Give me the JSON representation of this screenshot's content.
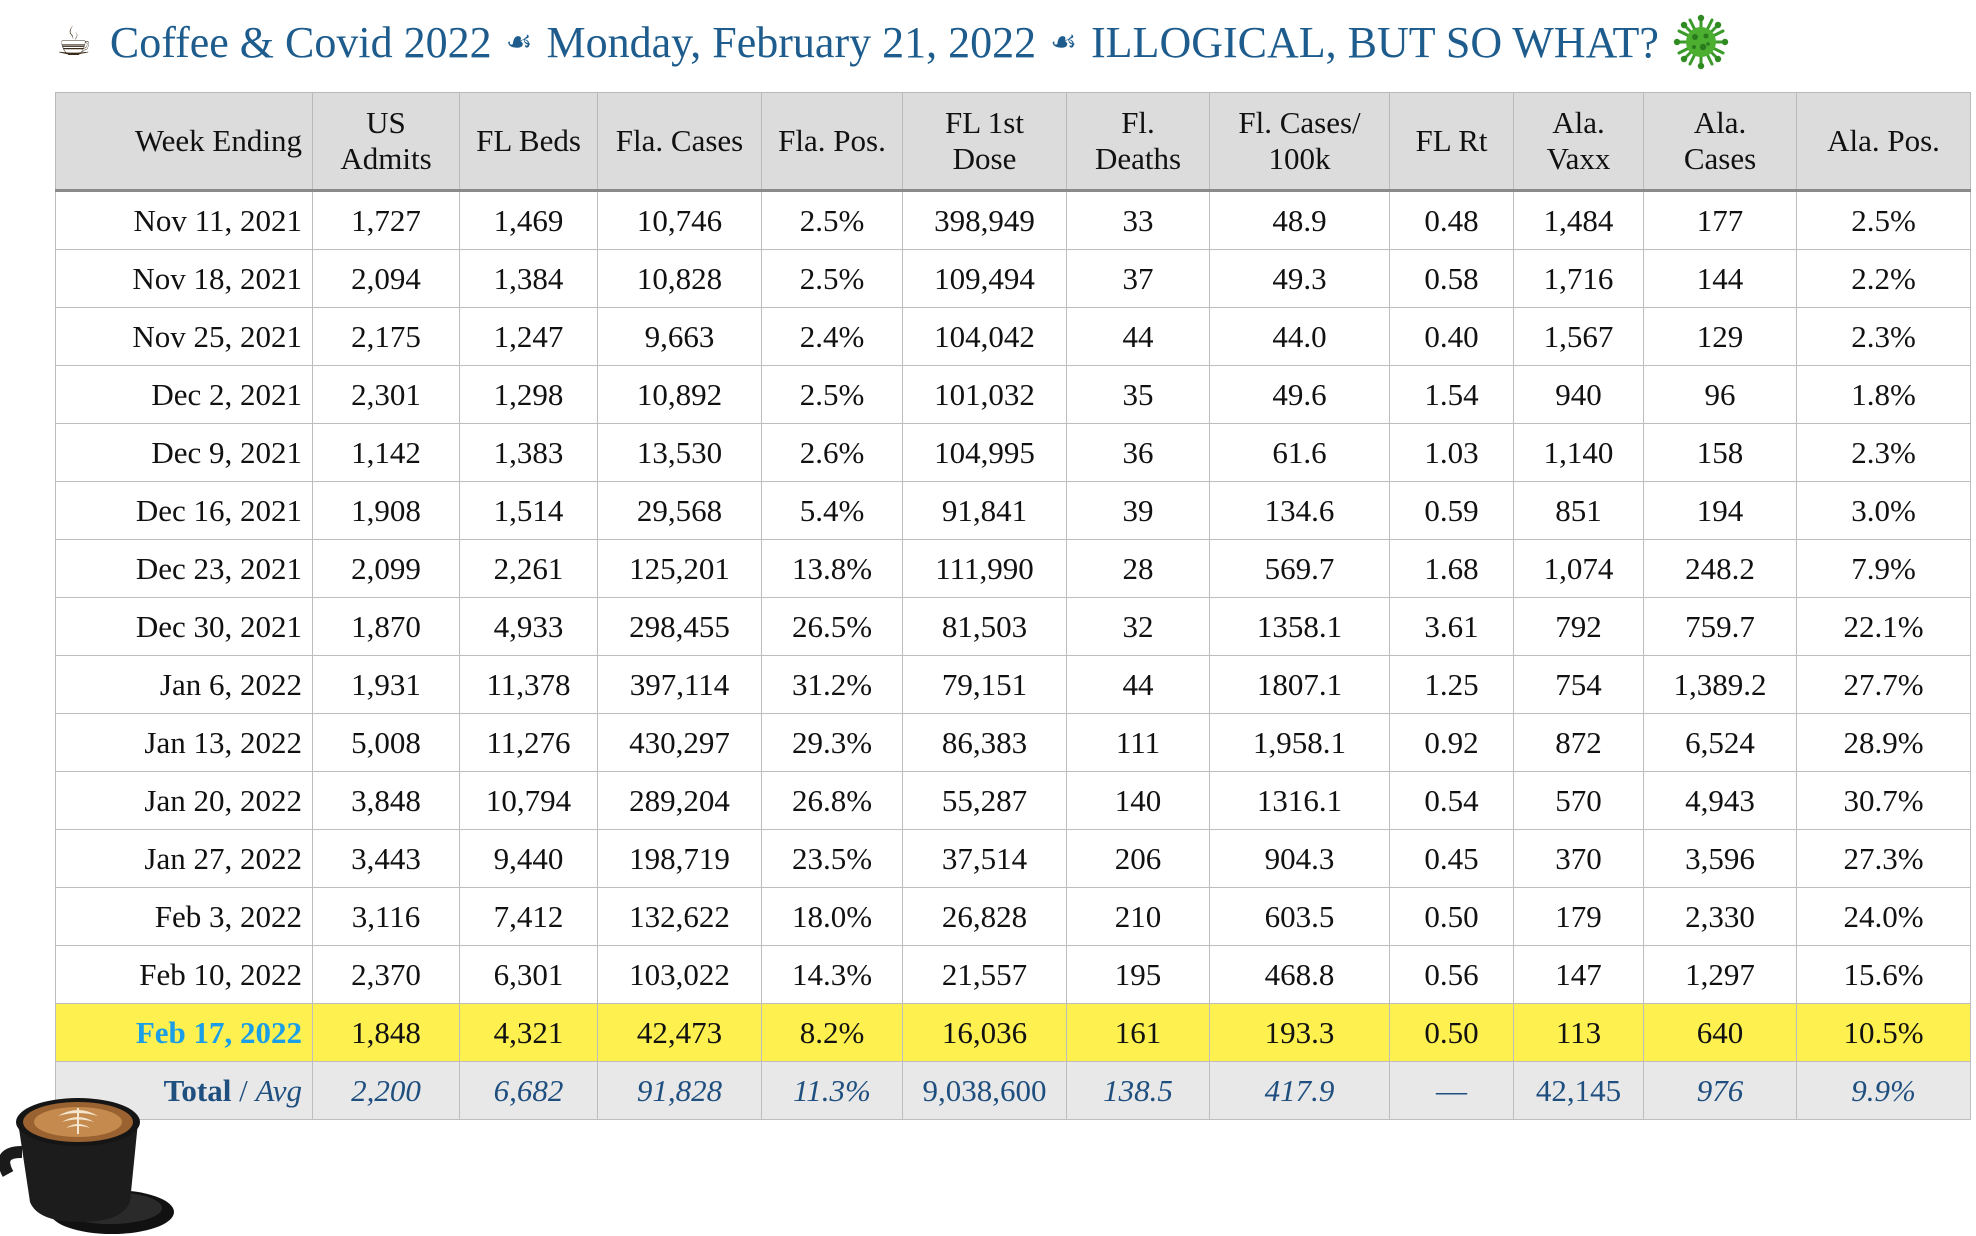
{
  "header": {
    "title_part1": "Coffee & Covid 2022",
    "title_part2": "Monday, February 21, 2022",
    "title_part3": "ILLOGICAL, BUT SO WHAT?",
    "coffee_icon": "☕",
    "separator_icon": "☙",
    "virus_icon": "virus-icon"
  },
  "table": {
    "columns": [
      "Week Ending",
      "US Admits",
      "FL Beds",
      "Fla. Cases",
      "Fla. Pos.",
      "FL 1st Dose",
      "Fl. Deaths",
      "Fl. Cases/ 100k",
      "FL Rt",
      "Ala. Vaxx",
      "Ala. Cases",
      "Ala. Pos."
    ],
    "rows": [
      [
        "Nov 11, 2021",
        "1,727",
        "1,469",
        "10,746",
        "2.5%",
        "398,949",
        "33",
        "48.9",
        "0.48",
        "1,484",
        "177",
        "2.5%"
      ],
      [
        "Nov 18, 2021",
        "2,094",
        "1,384",
        "10,828",
        "2.5%",
        "109,494",
        "37",
        "49.3",
        "0.58",
        "1,716",
        "144",
        "2.2%"
      ],
      [
        "Nov 25, 2021",
        "2,175",
        "1,247",
        "9,663",
        "2.4%",
        "104,042",
        "44",
        "44.0",
        "0.40",
        "1,567",
        "129",
        "2.3%"
      ],
      [
        "Dec 2, 2021",
        "2,301",
        "1,298",
        "10,892",
        "2.5%",
        "101,032",
        "35",
        "49.6",
        "1.54",
        "940",
        "96",
        "1.8%"
      ],
      [
        "Dec 9, 2021",
        "1,142",
        "1,383",
        "13,530",
        "2.6%",
        "104,995",
        "36",
        "61.6",
        "1.03",
        "1,140",
        "158",
        "2.3%"
      ],
      [
        "Dec 16, 2021",
        "1,908",
        "1,514",
        "29,568",
        "5.4%",
        "91,841",
        "39",
        "134.6",
        "0.59",
        "851",
        "194",
        "3.0%"
      ],
      [
        "Dec 23, 2021",
        "2,099",
        "2,261",
        "125,201",
        "13.8%",
        "111,990",
        "28",
        "569.7",
        "1.68",
        "1,074",
        "248.2",
        "7.9%"
      ],
      [
        "Dec 30, 2021",
        "1,870",
        "4,933",
        "298,455",
        "26.5%",
        "81,503",
        "32",
        "1358.1",
        "3.61",
        "792",
        "759.7",
        "22.1%"
      ],
      [
        "Jan 6, 2022",
        "1,931",
        "11,378",
        "397,114",
        "31.2%",
        "79,151",
        "44",
        "1807.1",
        "1.25",
        "754",
        "1,389.2",
        "27.7%"
      ],
      [
        "Jan 13, 2022",
        "5,008",
        "11,276",
        "430,297",
        "29.3%",
        "86,383",
        "111",
        "1,958.1",
        "0.92",
        "872",
        "6,524",
        "28.9%"
      ],
      [
        "Jan 20, 2022",
        "3,848",
        "10,794",
        "289,204",
        "26.8%",
        "55,287",
        "140",
        "1316.1",
        "0.54",
        "570",
        "4,943",
        "30.7%"
      ],
      [
        "Jan 27, 2022",
        "3,443",
        "9,440",
        "198,719",
        "23.5%",
        "37,514",
        "206",
        "904.3",
        "0.45",
        "370",
        "3,596",
        "27.3%"
      ],
      [
        "Feb 3, 2022",
        "3,116",
        "7,412",
        "132,622",
        "18.0%",
        "26,828",
        "210",
        "603.5",
        "0.50",
        "179",
        "2,330",
        "24.0%"
      ],
      [
        "Feb 10, 2022",
        "2,370",
        "6,301",
        "103,022",
        "14.3%",
        "21,557",
        "195",
        "468.8",
        "0.56",
        "147",
        "1,297",
        "15.6%"
      ]
    ],
    "highlight_row": [
      "Feb 17, 2022",
      "1,848",
      "4,321",
      "42,473",
      "8.2%",
      "16,036",
      "161",
      "193.3",
      "0.50",
      "113",
      "640",
      "10.5%"
    ],
    "total_row": {
      "label": "Total",
      "separator": " / ",
      "avg_label": "Avg",
      "values": [
        "2,200",
        "6,682",
        "91,828",
        "11.3%",
        "9,038,600",
        "138.5",
        "417.9",
        "—",
        "42,145",
        "976",
        "9.9%"
      ]
    }
  },
  "colors": {
    "title": "#1d5c8c",
    "header_bg": "#dcdcdc",
    "highlight_bg": "#fdf04f",
    "highlight_date": "#1a9ee8",
    "total_bg": "#e8e8e8",
    "total_text": "#1f4f7f",
    "virus_green": "#3a9a2a"
  },
  "decor": {
    "coffee_cup_image": "latte-cup-icon"
  }
}
